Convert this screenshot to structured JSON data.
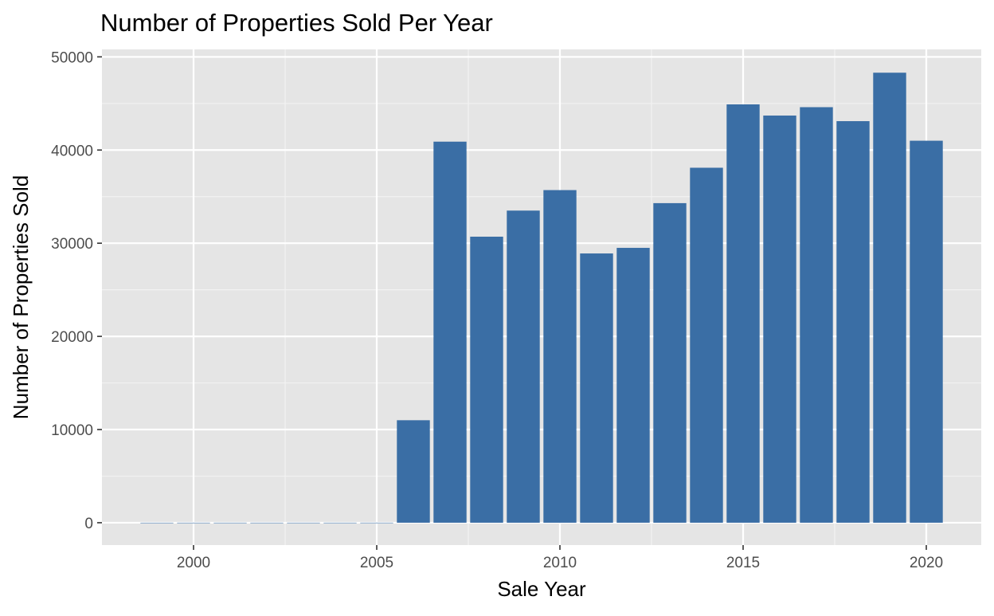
{
  "chart_data": {
    "type": "bar",
    "title": "Number of Properties Sold Per Year",
    "xlabel": "Sale Year",
    "ylabel": "Number of Properties Sold",
    "x": [
      1999,
      2000,
      2001,
      2002,
      2003,
      2004,
      2005,
      2006,
      2007,
      2008,
      2009,
      2010,
      2011,
      2012,
      2013,
      2014,
      2015,
      2016,
      2017,
      2018,
      2019,
      2020
    ],
    "values": [
      1,
      2,
      3,
      2,
      2,
      3,
      5,
      11000,
      40900,
      30700,
      33500,
      35700,
      28900,
      29500,
      34300,
      38100,
      44900,
      43700,
      44600,
      43100,
      48300,
      41000
    ],
    "xlim": [
      1997.5,
      2021.5
    ],
    "ylim": [
      -2400,
      50800
    ],
    "x_ticks": [
      2000,
      2005,
      2010,
      2015,
      2020
    ],
    "x_tick_labels": [
      "2000",
      "2005",
      "2010",
      "2015",
      "2020"
    ],
    "y_ticks": [
      0,
      10000,
      20000,
      30000,
      40000,
      50000
    ],
    "y_tick_labels": [
      "0",
      "10000",
      "20000",
      "30000",
      "40000",
      "50000"
    ],
    "grid": true,
    "legend": "none",
    "colors": {
      "bar": "#3a6ea5",
      "panel_background": "#e5e5e5",
      "grid_major": "#ffffff",
      "grid_minor": "#f2f2f2"
    }
  }
}
